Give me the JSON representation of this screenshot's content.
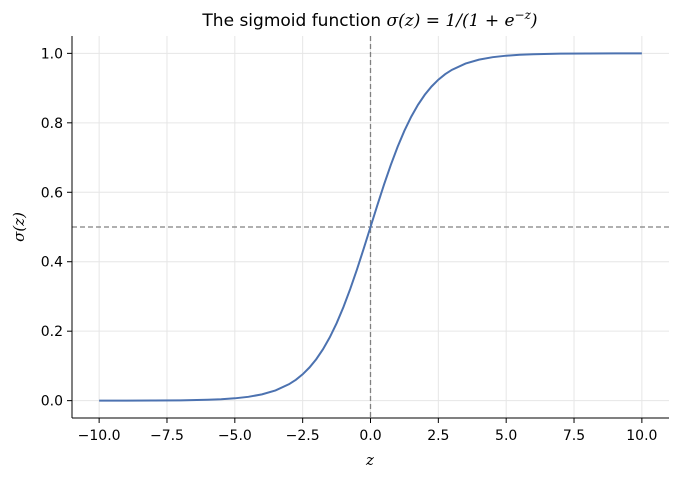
{
  "chart_data": {
    "type": "line",
    "title": "The sigmoid function σ(z) = 1/(1 + e^{−z})",
    "title_parts": {
      "prefix": "The sigmoid function ",
      "math_lhs": "σ(z) = 1/(1 + ",
      "math_base": "e",
      "math_exp": "−z",
      "math_close": ")"
    },
    "xlabel": "z",
    "ylabel": "σ(z)",
    "xlim": [
      -11.0,
      11.0
    ],
    "ylim": [
      -0.05,
      1.05
    ],
    "x_ticks": [
      -10.0,
      -7.5,
      -5.0,
      -2.5,
      0.0,
      2.5,
      5.0,
      7.5,
      10.0
    ],
    "x_tick_labels": [
      "−10.0",
      "−7.5",
      "−5.0",
      "−2.5",
      "0.0",
      "2.5",
      "5.0",
      "7.5",
      "10.0"
    ],
    "y_ticks": [
      0.0,
      0.2,
      0.4,
      0.6,
      0.8,
      1.0
    ],
    "y_tick_labels": [
      "0.0",
      "0.2",
      "0.4",
      "0.6",
      "0.8",
      "1.0"
    ],
    "grid": true,
    "reference_lines": [
      {
        "orientation": "horizontal",
        "value": 0.5,
        "style": "dashed",
        "color": "#808080"
      },
      {
        "orientation": "vertical",
        "value": 0.0,
        "style": "dashed",
        "color": "#808080"
      }
    ],
    "series": [
      {
        "color": "#4c72b0",
        "x": [
          -10.0,
          -9.0,
          -8.0,
          -7.0,
          -6.0,
          -5.5,
          -5.0,
          -4.5,
          -4.0,
          -3.5,
          -3.0,
          -2.75,
          -2.5,
          -2.25,
          -2.0,
          -1.75,
          -1.5,
          -1.25,
          -1.0,
          -0.75,
          -0.5,
          -0.25,
          0.0,
          0.25,
          0.5,
          0.75,
          1.0,
          1.25,
          1.5,
          1.75,
          2.0,
          2.25,
          2.5,
          2.75,
          3.0,
          3.5,
          4.0,
          4.5,
          5.0,
          5.5,
          6.0,
          7.0,
          8.0,
          9.0,
          10.0
        ],
        "y": [
          5e-05,
          0.00012,
          0.00034,
          0.00091,
          0.00247,
          0.00407,
          0.00669,
          0.01099,
          0.01799,
          0.02931,
          0.04743,
          0.06006,
          0.07586,
          0.09535,
          0.1192,
          0.14805,
          0.18243,
          0.2227,
          0.26894,
          0.32082,
          0.37754,
          0.43782,
          0.5,
          0.56218,
          0.62246,
          0.67918,
          0.73106,
          0.7773,
          0.81757,
          0.85195,
          0.8808,
          0.90465,
          0.92414,
          0.93994,
          0.95257,
          0.97069,
          0.98201,
          0.98901,
          0.99331,
          0.99593,
          0.99753,
          0.99909,
          0.99966,
          0.99988,
          0.99995
        ]
      }
    ]
  }
}
